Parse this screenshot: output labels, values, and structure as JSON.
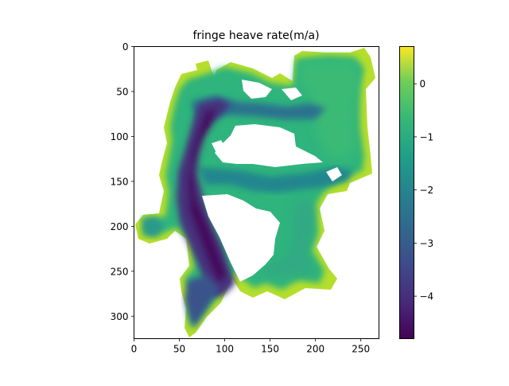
{
  "chart_data": {
    "type": "heatmap",
    "title": "fringe heave rate(m/a)",
    "xlabel": "",
    "ylabel": "",
    "x_ticks": [
      0,
      50,
      100,
      150,
      200,
      250
    ],
    "y_ticks": [
      0,
      50,
      100,
      150,
      200,
      250,
      300
    ],
    "xlim": [
      0,
      270
    ],
    "ylim": [
      325,
      0
    ],
    "colormap": "viridis",
    "colorbar": {
      "min": -4.8,
      "max": 0.7,
      "ticks": [
        0,
        -1,
        -2,
        -3,
        -4
      ]
    },
    "colors": {
      "min": "#440154",
      "q1": "#3b528b",
      "mid": "#21918c",
      "q3": "#5ec962",
      "max": "#fde725"
    },
    "regions": [
      {
        "name": "left-spine",
        "value": -4.5
      },
      {
        "name": "upper-arm",
        "value": -3.0
      },
      {
        "name": "middle-arm",
        "value": -2.6
      },
      {
        "name": "right-upper-block",
        "value": -1.0
      },
      {
        "name": "right-lower-lobe",
        "value": -1.2
      },
      {
        "name": "bottom-tail",
        "value": -3.2
      },
      {
        "name": "fringe",
        "value": 0.3
      }
    ]
  }
}
